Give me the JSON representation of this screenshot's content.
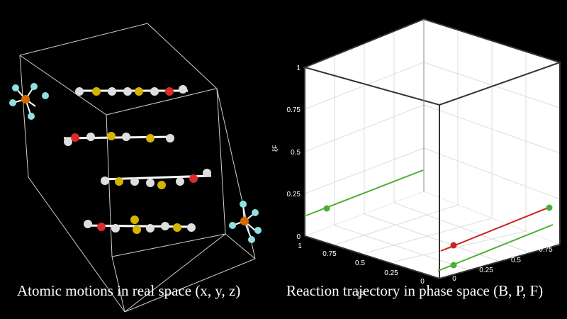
{
  "captions": {
    "left": "Atomic motions in real space (x, y, z)",
    "right": "Reaction trajectory in phase space (B, P, F)"
  },
  "colors": {
    "background": "#000000",
    "box_edge": "#d0d0d0",
    "carbon": "#e8e8e8",
    "sulfur": "#d4b400",
    "oxygen": "#d92b2b",
    "phosphorus": "#d46a00",
    "fluorine": "#8fe0e0",
    "trajectory_green": "#4caf33",
    "trajectory_red": "#cc2222",
    "phase_box_face": "#ffffff",
    "phase_grid": "#dddddd"
  },
  "phase_plot": {
    "axis_label_vertical": "ξF",
    "axis_label_front": "ξP",
    "z_ticks": [
      "0",
      "0.25",
      "0.5",
      "0.75",
      "1"
    ],
    "left_floor_ticks": [
      "1",
      "0.75",
      "0.5",
      "0.25",
      "0"
    ],
    "right_floor_ticks": [
      "0",
      "0.25",
      "0.5",
      "0.75"
    ]
  },
  "molecule": {
    "chain_count": 4,
    "anion_count": 2
  }
}
